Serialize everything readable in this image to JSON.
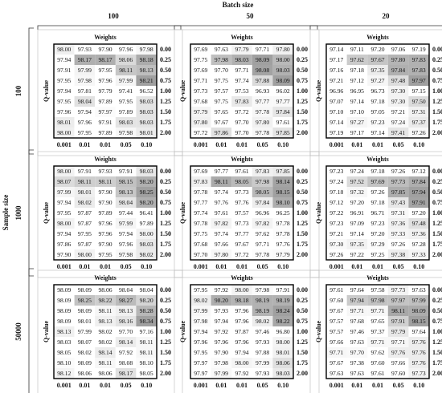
{
  "batch_label": "Batch size",
  "sample_label": "Sample size",
  "batch_sizes": [
    "100",
    "50",
    "20"
  ],
  "sample_sizes": [
    "100",
    "1000",
    "50000"
  ],
  "weights_label": "Weights",
  "q_label": "Q-value",
  "weights": [
    "0.001",
    "0.01",
    "0.01",
    "0.05",
    "0.10"
  ],
  "q_values": [
    "0.00",
    "0.25",
    "0.50",
    "0.75",
    "1.00",
    "1.25",
    "1.50",
    "1.75",
    "2.00"
  ],
  "panels": [
    [
      {
        "cells": [
          [
            "98.00",
            "97.93",
            "97.90",
            "97.96",
            "97.98"
          ],
          [
            "97.94",
            "98.17",
            "98.17",
            "98.06",
            "98.18"
          ],
          [
            "97.91",
            "97.99",
            "97.95",
            "98.11",
            "98.13"
          ],
          [
            "97.95",
            "97.98",
            "97.96",
            "97.99",
            "98.21"
          ],
          [
            "97.94",
            "97.81",
            "97.79",
            "97.41",
            "96.52"
          ],
          [
            "97.95",
            "98.04",
            "97.89",
            "97.95",
            "98.03"
          ],
          [
            "97.96",
            "97.94",
            "97.97",
            "97.89",
            "98.03"
          ],
          [
            "98.01",
            "97.96",
            "97.91",
            "98.03",
            "98.03"
          ],
          [
            "98.00",
            "97.95",
            "97.89",
            "97.98",
            "98.01"
          ]
        ]
      },
      {
        "cells": [
          [
            "97.69",
            "97.63",
            "97.79",
            "97.71",
            "97.80"
          ],
          [
            "97.75",
            "97.98",
            "98.03",
            "98.09",
            "98.00"
          ],
          [
            "97.69",
            "97.70",
            "97.71",
            "98.08",
            "98.03"
          ],
          [
            "97.71",
            "97.75",
            "97.74",
            "97.88",
            "98.09"
          ],
          [
            "97.73",
            "97.57",
            "97.53",
            "96.93",
            "96.02"
          ],
          [
            "97.68",
            "97.75",
            "97.83",
            "97.77",
            "97.77"
          ],
          [
            "97.79",
            "97.65",
            "97.72",
            "97.78",
            "97.84"
          ],
          [
            "97.80",
            "97.67",
            "97.70",
            "97.80",
            "97.61"
          ],
          [
            "97.72",
            "97.86",
            "97.70",
            "97.78",
            "97.85"
          ]
        ]
      },
      {
        "cells": [
          [
            "97.14",
            "97.11",
            "97.20",
            "97.06",
            "97.19"
          ],
          [
            "97.17",
            "97.62",
            "97.67",
            "97.80",
            "97.83"
          ],
          [
            "97.16",
            "97.18",
            "97.35",
            "97.84",
            "97.83"
          ],
          [
            "97.21",
            "97.12",
            "97.27",
            "97.48",
            "97.97"
          ],
          [
            "96.96",
            "96.95",
            "96.73",
            "97.30",
            "97.15"
          ],
          [
            "97.07",
            "97.14",
            "97.18",
            "97.30",
            "97.50"
          ],
          [
            "97.10",
            "97.10",
            "97.05",
            "97.21",
            "97.31"
          ],
          [
            "97.14",
            "97.27",
            "97.23",
            "97.24",
            "97.37"
          ],
          [
            "97.19",
            "97.17",
            "97.14",
            "97.41",
            "97.26"
          ]
        ]
      }
    ],
    [
      {
        "cells": [
          [
            "98.00",
            "97.91",
            "97.93",
            "97.91",
            "98.03"
          ],
          [
            "98.07",
            "98.11",
            "98.11",
            "98.15",
            "98.20"
          ],
          [
            "97.99",
            "98.01",
            "97.90",
            "98.13",
            "98.25"
          ],
          [
            "97.94",
            "98.02",
            "97.90",
            "98.04",
            "98.20"
          ],
          [
            "97.95",
            "97.87",
            "97.89",
            "97.44",
            "96.41"
          ],
          [
            "98.00",
            "97.87",
            "97.96",
            "97.99",
            "97.89"
          ],
          [
            "97.94",
            "97.95",
            "97.96",
            "97.94",
            "98.00"
          ],
          [
            "97.86",
            "97.87",
            "97.90",
            "97.96",
            "98.03"
          ],
          [
            "97.90",
            "98.00",
            "97.95",
            "97.98",
            "98.02"
          ]
        ]
      },
      {
        "cells": [
          [
            "97.69",
            "97.77",
            "97.61",
            "97.83",
            "97.85"
          ],
          [
            "97.83",
            "98.11",
            "98.05",
            "97.98",
            "98.14"
          ],
          [
            "97.78",
            "97.74",
            "97.73",
            "98.05",
            "98.15"
          ],
          [
            "97.77",
            "97.76",
            "97.76",
            "97.84",
            "98.10"
          ],
          [
            "97.74",
            "97.61",
            "97.57",
            "96.96",
            "96.25"
          ],
          [
            "97.78",
            "97.82",
            "97.73",
            "97.82",
            "97.78"
          ],
          [
            "97.75",
            "97.74",
            "97.77",
            "97.62",
            "97.78"
          ],
          [
            "97.68",
            "97.66",
            "97.67",
            "97.71",
            "97.76"
          ],
          [
            "97.70",
            "97.80",
            "97.72",
            "97.78",
            "97.79"
          ]
        ]
      },
      {
        "cells": [
          [
            "97.23",
            "97.24",
            "97.18",
            "97.26",
            "97.12"
          ],
          [
            "97.24",
            "97.52",
            "97.69",
            "97.73",
            "97.84"
          ],
          [
            "97.18",
            "97.32",
            "97.26",
            "97.85",
            "97.94"
          ],
          [
            "97.12",
            "97.20",
            "97.18",
            "97.43",
            "97.91"
          ],
          [
            "97.22",
            "96.91",
            "96.71",
            "97.31",
            "97.20"
          ],
          [
            "97.23",
            "97.09",
            "97.23",
            "97.36",
            "97.48"
          ],
          [
            "97.21",
            "97.14",
            "97.20",
            "97.33",
            "97.36"
          ],
          [
            "97.30",
            "97.35",
            "97.29",
            "97.26",
            "97.28"
          ],
          [
            "97.26",
            "97.22",
            "97.25",
            "97.38",
            "97.33"
          ]
        ]
      }
    ],
    [
      {
        "cells": [
          [
            "98.09",
            "98.09",
            "98.06",
            "98.04",
            "98.04"
          ],
          [
            "98.09",
            "98.25",
            "98.22",
            "98.27",
            "98.20"
          ],
          [
            "98.09",
            "98.09",
            "98.11",
            "98.13",
            "98.28"
          ],
          [
            "98.09",
            "98.01",
            "98.13",
            "98.16",
            "98.34"
          ],
          [
            "98.13",
            "97.99",
            "98.02",
            "97.70",
            "97.16"
          ],
          [
            "98.03",
            "98.07",
            "98.02",
            "98.14",
            "98.11"
          ],
          [
            "98.05",
            "98.02",
            "98.14",
            "97.92",
            "98.11"
          ],
          [
            "98.10",
            "98.09",
            "98.11",
            "98.08",
            "98.10"
          ],
          [
            "98.12",
            "98.06",
            "98.06",
            "98.17",
            "98.05"
          ]
        ]
      },
      {
        "cells": [
          [
            "97.95",
            "97.92",
            "98.00",
            "97.98",
            "97.91"
          ],
          [
            "98.02",
            "98.20",
            "98.18",
            "98.19",
            "98.19"
          ],
          [
            "97.99",
            "97.93",
            "97.96",
            "98.19",
            "98.24"
          ],
          [
            "97.98",
            "97.94",
            "97.96",
            "98.02",
            "98.22"
          ],
          [
            "97.94",
            "97.92",
            "97.87",
            "97.46",
            "96.80"
          ],
          [
            "97.96",
            "97.96",
            "97.96",
            "97.93",
            "98.00"
          ],
          [
            "97.95",
            "97.90",
            "97.94",
            "97.88",
            "98.01"
          ],
          [
            "97.97",
            "97.98",
            "98.00",
            "97.99",
            "98.06"
          ],
          [
            "97.97",
            "97.99",
            "97.92",
            "97.93",
            "98.03"
          ]
        ]
      },
      {
        "cells": [
          [
            "97.61",
            "97.64",
            "97.58",
            "97.73",
            "97.63"
          ],
          [
            "97.60",
            "97.94",
            "97.98",
            "97.97",
            "97.99"
          ],
          [
            "97.67",
            "97.71",
            "97.71",
            "98.11",
            "98.09"
          ],
          [
            "97.57",
            "97.68",
            "97.65",
            "97.91",
            "98.15"
          ],
          [
            "97.57",
            "97.46",
            "97.37",
            "97.79",
            "97.64"
          ],
          [
            "97.66",
            "97.63",
            "97.71",
            "97.71",
            "97.76"
          ],
          [
            "97.71",
            "97.70",
            "97.62",
            "97.76",
            "97.76"
          ],
          [
            "97.67",
            "97.38",
            "97.60",
            "97.66",
            "97.76"
          ],
          [
            "97.63",
            "97.63",
            "97.61",
            "97.60",
            "97.73"
          ]
        ]
      }
    ]
  ]
}
